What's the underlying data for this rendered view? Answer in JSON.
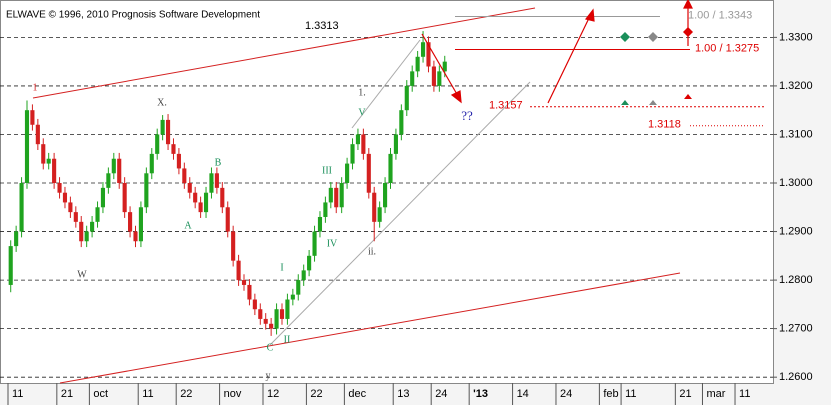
{
  "header": "ELWAVE © 1996, 2010 Prognosis Software Development",
  "chart_data": {
    "type": "candlestick",
    "categories": [
      "11",
      null,
      null,
      null,
      null,
      null,
      null,
      null,
      null,
      "21",
      null,
      null,
      null,
      null,
      null,
      "oct",
      null,
      null,
      null,
      null,
      null,
      null,
      null,
      null,
      "11",
      null,
      null,
      null,
      null,
      null,
      null,
      "22",
      null,
      null,
      null,
      null,
      null,
      null,
      null,
      "nov",
      null,
      null,
      null,
      null,
      null,
      null,
      null,
      "12",
      null,
      null,
      null,
      null,
      null,
      null,
      null,
      "22",
      null,
      null,
      null,
      null,
      null,
      null,
      "dec",
      null,
      null,
      null,
      null,
      null,
      null,
      null,
      null,
      "13",
      null,
      null,
      null,
      null,
      null,
      null,
      "24",
      null,
      null,
      null,
      null,
      null,
      null,
      "'13",
      null,
      null,
      null,
      null,
      null,
      null,
      null,
      "14",
      null,
      null,
      null,
      null,
      null,
      null,
      null,
      "24",
      null,
      null,
      null,
      null,
      null,
      null,
      null,
      "feb",
      null,
      null,
      null,
      "11",
      null,
      null,
      null,
      null,
      null,
      null,
      null,
      null,
      null,
      "21",
      null,
      null,
      null,
      null,
      "mar",
      null,
      null,
      null,
      null,
      null,
      "11",
      null,
      null,
      null,
      null,
      null,
      null
    ],
    "open": [
      1.279,
      1.287,
      1.29,
      1.3,
      1.315,
      1.312,
      1.308,
      1.304,
      1.305,
      1.3,
      1.298,
      1.296,
      1.294,
      1.292,
      1.288,
      1.29,
      1.292,
      1.295,
      1.299,
      1.302,
      1.305,
      1.3,
      1.294,
      1.29,
      1.288,
      1.295,
      1.302,
      1.306,
      1.31,
      1.313,
      1.308,
      1.306,
      1.303,
      1.3,
      1.298,
      1.296,
      1.294,
      1.298,
      1.302,
      1.299,
      1.295,
      1.29,
      1.284,
      1.28,
      1.279,
      1.276,
      1.274,
      1.272,
      1.271,
      1.27,
      1.274,
      1.272,
      1.276,
      1.277,
      1.28,
      1.282,
      1.285,
      1.29,
      1.293,
      1.296,
      1.299,
      1.295,
      1.3,
      1.304,
      1.308,
      1.31,
      1.306,
      1.298,
      1.292,
      1.295,
      1.3,
      1.306,
      1.31,
      1.315,
      1.32,
      1.323,
      1.326,
      1.329,
      1.324,
      1.32,
      1.323,
      null,
      null,
      null,
      null,
      null,
      null,
      null,
      null,
      null,
      null,
      null,
      null,
      null,
      null,
      null,
      null,
      null,
      null,
      null,
      null,
      null,
      null,
      null,
      null,
      null,
      null,
      null,
      null,
      null,
      null,
      null,
      null,
      null,
      null,
      null,
      null,
      null,
      null,
      null,
      null,
      null,
      null,
      null,
      null,
      null,
      null,
      null,
      null,
      null,
      null,
      null,
      null,
      null,
      null,
      null,
      null,
      null,
      null,
      null,
      null
    ],
    "high": [
      1.2882,
      1.2912,
      1.3012,
      1.317,
      1.3162,
      1.3132,
      1.3092,
      1.3062,
      1.3062,
      1.3012,
      1.2992,
      1.2972,
      1.2952,
      1.2932,
      1.2912,
      1.2932,
      1.2962,
      1.3002,
      1.3032,
      1.3062,
      1.3062,
      1.3012,
      1.2952,
      1.2912,
      1.2962,
      1.3032,
      1.3072,
      1.3112,
      1.314,
      1.3142,
      1.3092,
      1.3072,
      1.3042,
      1.3012,
      1.2992,
      1.2972,
      1.2992,
      1.3032,
      1.3032,
      1.3002,
      1.2962,
      1.2912,
      1.2852,
      1.2812,
      1.2802,
      1.2772,
      1.2752,
      1.2732,
      1.2722,
      1.2752,
      1.2752,
      1.2772,
      1.2782,
      1.2812,
      1.2832,
      1.2862,
      1.2912,
      1.2942,
      1.2972,
      1.3002,
      1.3002,
      1.3012,
      1.3052,
      1.3092,
      1.3112,
      1.3112,
      1.3072,
      1.2992,
      1.2962,
      1.3012,
      1.3072,
      1.3112,
      1.3162,
      1.3212,
      1.3242,
      1.3272,
      1.3313,
      1.3302,
      1.3252,
      1.3242,
      1.3262,
      null,
      null,
      null,
      null,
      null,
      null,
      null,
      null,
      null,
      null,
      null,
      null,
      null,
      null,
      null,
      null,
      null,
      null,
      null,
      null,
      null,
      null,
      null,
      null,
      null,
      null,
      null,
      null,
      null,
      null,
      null,
      null,
      null,
      null,
      null,
      null,
      null,
      null,
      null,
      null,
      null,
      null,
      null,
      null,
      null,
      null,
      null,
      null,
      null,
      null,
      null,
      null,
      null,
      null,
      null,
      null,
      null,
      null,
      null,
      null
    ],
    "low": [
      1.2775,
      1.2858,
      1.2888,
      1.2988,
      1.3108,
      1.3068,
      1.3028,
      1.3028,
      1.2988,
      1.2968,
      1.2948,
      1.2928,
      1.2908,
      1.2868,
      1.2868,
      1.2888,
      1.2908,
      1.2938,
      1.2978,
      1.3008,
      1.2988,
      1.2928,
      1.2888,
      1.2868,
      1.2868,
      1.2938,
      1.3008,
      1.3048,
      1.3088,
      1.3068,
      1.3048,
      1.3018,
      1.2988,
      1.2968,
      1.2948,
      1.2928,
      1.2928,
      1.2968,
      1.2978,
      1.2938,
      1.2888,
      1.2828,
      1.2788,
      1.2778,
      1.2748,
      1.2728,
      1.2708,
      1.2698,
      1.2685,
      1.2688,
      1.2708,
      1.2708,
      1.2748,
      1.2758,
      1.2788,
      1.2808,
      1.2838,
      1.2888,
      1.2918,
      1.2948,
      1.2938,
      1.2938,
      1.2988,
      1.3028,
      1.3068,
      1.3048,
      1.2968,
      1.288,
      1.2908,
      1.2938,
      1.2988,
      1.3048,
      1.3088,
      1.3138,
      1.3188,
      1.3218,
      1.3248,
      1.3228,
      1.3188,
      1.3188,
      1.3218,
      null,
      null,
      null,
      null,
      null,
      null,
      null,
      null,
      null,
      null,
      null,
      null,
      null,
      null,
      null,
      null,
      null,
      null,
      null,
      null,
      null,
      null,
      null,
      null,
      null,
      null,
      null,
      null,
      null,
      null,
      null,
      null,
      null,
      null,
      null,
      null,
      null,
      null,
      null,
      null,
      null,
      null,
      null,
      null,
      null,
      null,
      null,
      null,
      null,
      null,
      null,
      null,
      null,
      null,
      null,
      null,
      null,
      null,
      null,
      null
    ],
    "close": [
      1.287,
      1.29,
      1.3,
      1.315,
      1.312,
      1.308,
      1.304,
      1.305,
      1.3,
      1.298,
      1.296,
      1.294,
      1.292,
      1.288,
      1.29,
      1.292,
      1.295,
      1.299,
      1.302,
      1.305,
      1.3,
      1.294,
      1.29,
      1.288,
      1.295,
      1.302,
      1.306,
      1.31,
      1.313,
      1.308,
      1.306,
      1.303,
      1.3,
      1.298,
      1.296,
      1.294,
      1.298,
      1.302,
      1.299,
      1.295,
      1.29,
      1.284,
      1.28,
      1.279,
      1.276,
      1.274,
      1.272,
      1.271,
      1.27,
      1.274,
      1.272,
      1.276,
      1.277,
      1.28,
      1.282,
      1.285,
      1.29,
      1.293,
      1.296,
      1.299,
      1.295,
      1.3,
      1.304,
      1.308,
      1.31,
      1.306,
      1.298,
      1.292,
      1.295,
      1.3,
      1.306,
      1.31,
      1.315,
      1.32,
      1.323,
      1.326,
      1.329,
      1.324,
      1.32,
      1.323,
      1.325,
      null,
      null,
      null,
      null,
      null,
      null,
      null,
      null,
      null,
      null,
      null,
      null,
      null,
      null,
      null,
      null,
      null,
      null,
      null,
      null,
      null,
      null,
      null,
      null,
      null,
      null,
      null,
      null,
      null,
      null,
      null,
      null,
      null,
      null,
      null,
      null,
      null,
      null,
      null,
      null,
      null,
      null,
      null,
      null,
      null,
      null,
      null,
      null,
      null,
      null,
      null,
      null,
      null,
      null,
      null,
      null,
      null,
      null,
      null,
      null
    ],
    "up_color": "#1fa31f",
    "down_color": "#d42020",
    "ylim": [
      1.2588,
      1.3377
    ],
    "yticks": [
      {
        "value": 1.26,
        "label": "1.2600"
      },
      {
        "value": 1.27,
        "label": "1.2700"
      },
      {
        "value": 1.28,
        "label": "1.2800"
      },
      {
        "value": 1.29,
        "label": "1.2900"
      },
      {
        "value": 1.3,
        "label": "1.3000"
      },
      {
        "value": 1.31,
        "label": "1.3100"
      },
      {
        "value": 1.32,
        "label": "1.3200"
      },
      {
        "value": 1.33,
        "label": "1.3300"
      }
    ],
    "grid": true,
    "levels": [
      {
        "value": 1.3313,
        "label": "1.3313",
        "color": "#000000"
      },
      {
        "value": 1.3343,
        "label": "1.00 / 1.3343",
        "color": "#999999"
      },
      {
        "value": 1.3275,
        "label": "1.00 / 1.3275",
        "color": "#dd0000"
      },
      {
        "value": 1.3157,
        "label": "1.3157",
        "color": "#dd0000"
      },
      {
        "value": 1.3118,
        "label": "1.3118",
        "color": "#dd0000"
      }
    ],
    "wave_labels": [
      "1",
      "X.",
      "W",
      "B",
      "A",
      "C",
      "y",
      "I",
      "II",
      "III",
      "IV",
      "V",
      "1.",
      "ii.",
      "??"
    ]
  }
}
